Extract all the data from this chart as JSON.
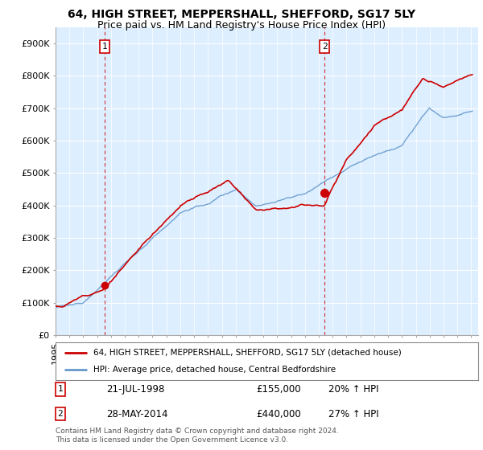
{
  "title": "64, HIGH STREET, MEPPERSHALL, SHEFFORD, SG17 5LY",
  "subtitle": "Price paid vs. HM Land Registry's House Price Index (HPI)",
  "ylabel_ticks": [
    "£0",
    "£100K",
    "£200K",
    "£300K",
    "£400K",
    "£500K",
    "£600K",
    "£700K",
    "£800K",
    "£900K"
  ],
  "ytick_values": [
    0,
    100000,
    200000,
    300000,
    400000,
    500000,
    600000,
    700000,
    800000,
    900000
  ],
  "ylim": [
    0,
    950000
  ],
  "xlim_start": 1995.0,
  "xlim_end": 2025.5,
  "red_line_color": "#cc0000",
  "blue_line_color": "#6699cc",
  "chart_bg_color": "#ddeeff",
  "background_color": "#ffffff",
  "grid_color": "#ffffff",
  "purchase1_x": 1998.55,
  "purchase1_y": 155000,
  "purchase2_x": 2014.41,
  "purchase2_y": 440000,
  "legend_red_label": "64, HIGH STREET, MEPPERSHALL, SHEFFORD, SG17 5LY (detached house)",
  "legend_blue_label": "HPI: Average price, detached house, Central Bedfordshire",
  "table_row1": [
    "1",
    "21-JUL-1998",
    "£155,000",
    "20% ↑ HPI"
  ],
  "table_row2": [
    "2",
    "28-MAY-2014",
    "£440,000",
    "27% ↑ HPI"
  ],
  "footnote": "Contains HM Land Registry data © Crown copyright and database right 2024.\nThis data is licensed under the Open Government Licence v3.0.",
  "dashed_x1": 1998.55,
  "dashed_x2": 2014.41,
  "title_fontsize": 10,
  "subtitle_fontsize": 9,
  "tick_fontsize": 8
}
